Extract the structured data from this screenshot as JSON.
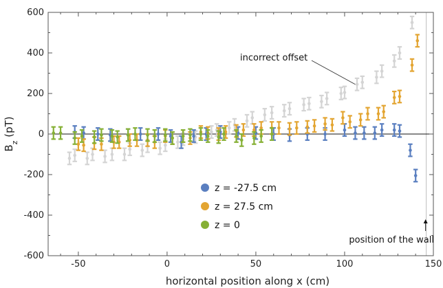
{
  "chart_data": {
    "type": "scatter",
    "title": "",
    "xlabel": "horizontal position along x (cm)",
    "ylabel": "B",
    "ylabel_sub": "z",
    "ylabel_unit": " (pT)",
    "xlim": [
      -67,
      150
    ],
    "ylim": [
      -600,
      600
    ],
    "x_ticks": [
      -50,
      0,
      50,
      100,
      150
    ],
    "y_ticks": [
      -600,
      -400,
      -200,
      0,
      200,
      400,
      600
    ],
    "x_tick_labels": [
      "-50",
      "0",
      "50",
      "100",
      "150"
    ],
    "y_tick_labels": [
      "-600",
      "-400",
      "-200",
      "0",
      "200",
      "400",
      "600"
    ],
    "grid": false,
    "wall_x": 146,
    "legend_position": "bottom-center",
    "annotations": {
      "incorrect_offset": "incorrect offset",
      "wall": "position of the wall"
    },
    "series": [
      {
        "name": "incorrect offset (gray)",
        "color": "#d4d4d4",
        "in_legend": false,
        "points": [
          {
            "x": -55,
            "y": -120,
            "err": 30
          },
          {
            "x": -52,
            "y": -105,
            "err": 30
          },
          {
            "x": -45,
            "y": -120,
            "err": 30
          },
          {
            "x": -42,
            "y": -100,
            "err": 30
          },
          {
            "x": -35,
            "y": -110,
            "err": 30
          },
          {
            "x": -31,
            "y": -100,
            "err": 30
          },
          {
            "x": -24,
            "y": -100,
            "err": 30
          },
          {
            "x": -21,
            "y": -75,
            "err": 30
          },
          {
            "x": -14,
            "y": -80,
            "err": 30
          },
          {
            "x": -11,
            "y": -60,
            "err": 30
          },
          {
            "x": -4,
            "y": -70,
            "err": 30
          },
          {
            "x": -1,
            "y": -55,
            "err": 30
          },
          {
            "x": 6,
            "y": -40,
            "err": 30
          },
          {
            "x": 9,
            "y": -25,
            "err": 30
          },
          {
            "x": 16,
            "y": -15,
            "err": 30
          },
          {
            "x": 19,
            "y": 0,
            "err": 30
          },
          {
            "x": 25,
            "y": 10,
            "err": 30
          },
          {
            "x": 28,
            "y": 20,
            "err": 30
          },
          {
            "x": 35,
            "y": 30,
            "err": 30
          },
          {
            "x": 38,
            "y": 45,
            "err": 30
          },
          {
            "x": 45,
            "y": 65,
            "err": 30
          },
          {
            "x": 48,
            "y": 80,
            "err": 30
          },
          {
            "x": 55,
            "y": 95,
            "err": 30
          },
          {
            "x": 59,
            "y": 105,
            "err": 30
          },
          {
            "x": 66,
            "y": 115,
            "err": 30
          },
          {
            "x": 69,
            "y": 125,
            "err": 30
          },
          {
            "x": 77,
            "y": 145,
            "err": 30
          },
          {
            "x": 80,
            "y": 150,
            "err": 30
          },
          {
            "x": 87,
            "y": 160,
            "err": 30
          },
          {
            "x": 90,
            "y": 175,
            "err": 30
          },
          {
            "x": 98,
            "y": 200,
            "err": 30
          },
          {
            "x": 100,
            "y": 205,
            "err": 30
          },
          {
            "x": 107,
            "y": 245,
            "err": 30
          },
          {
            "x": 110,
            "y": 255,
            "err": 30
          },
          {
            "x": 118,
            "y": 280,
            "err": 30
          },
          {
            "x": 121,
            "y": 310,
            "err": 30
          },
          {
            "x": 128,
            "y": 360,
            "err": 30
          },
          {
            "x": 131,
            "y": 400,
            "err": 30
          },
          {
            "x": 138,
            "y": 550,
            "err": 30
          }
        ]
      },
      {
        "name": "z = -27.5 cm",
        "color": "#5a7fc0",
        "in_legend": true,
        "points": [
          {
            "x": -52,
            "y": 10,
            "err": 30
          },
          {
            "x": -47,
            "y": 5,
            "err": 30
          },
          {
            "x": -39,
            "y": 0,
            "err": 30
          },
          {
            "x": -32,
            "y": -5,
            "err": 30
          },
          {
            "x": -22,
            "y": -5,
            "err": 30
          },
          {
            "x": -15,
            "y": 0,
            "err": 30
          },
          {
            "x": -5,
            "y": 0,
            "err": 30
          },
          {
            "x": 2,
            "y": -10,
            "err": 30
          },
          {
            "x": 8,
            "y": -40,
            "err": 30
          },
          {
            "x": 15,
            "y": -10,
            "err": 30
          },
          {
            "x": 22,
            "y": 0,
            "err": 30
          },
          {
            "x": 30,
            "y": 10,
            "err": 30
          },
          {
            "x": 40,
            "y": 5,
            "err": 30
          },
          {
            "x": 50,
            "y": 5,
            "err": 30
          },
          {
            "x": 60,
            "y": 0,
            "err": 30
          },
          {
            "x": 69,
            "y": -5,
            "err": 30
          },
          {
            "x": 79,
            "y": 0,
            "err": 30
          },
          {
            "x": 89,
            "y": 0,
            "err": 30
          },
          {
            "x": 100,
            "y": 20,
            "err": 30
          },
          {
            "x": 106,
            "y": 5,
            "err": 30
          },
          {
            "x": 111,
            "y": 5,
            "err": 30
          },
          {
            "x": 117,
            "y": 5,
            "err": 30
          },
          {
            "x": 121,
            "y": 20,
            "err": 30
          },
          {
            "x": 128,
            "y": 20,
            "err": 30
          },
          {
            "x": 131,
            "y": 15,
            "err": 30
          },
          {
            "x": 137,
            "y": -80,
            "err": 30
          },
          {
            "x": 140,
            "y": -205,
            "err": 30
          }
        ]
      },
      {
        "name": "z = 27.5 cm",
        "color": "#e3a532",
        "in_legend": true,
        "points": [
          {
            "x": -50,
            "y": -50,
            "err": 30
          },
          {
            "x": -47,
            "y": -55,
            "err": 30
          },
          {
            "x": -41,
            "y": -45,
            "err": 30
          },
          {
            "x": -37,
            "y": -50,
            "err": 30
          },
          {
            "x": -30,
            "y": -40,
            "err": 30
          },
          {
            "x": -27,
            "y": -40,
            "err": 30
          },
          {
            "x": -21,
            "y": -30,
            "err": 30
          },
          {
            "x": -17,
            "y": -30,
            "err": 30
          },
          {
            "x": -11,
            "y": -30,
            "err": 30
          },
          {
            "x": -7,
            "y": -40,
            "err": 30
          },
          {
            "x": -1,
            "y": -10,
            "err": 30
          },
          {
            "x": 3,
            "y": -20,
            "err": 30
          },
          {
            "x": 9,
            "y": -10,
            "err": 30
          },
          {
            "x": 13,
            "y": -20,
            "err": 30
          },
          {
            "x": 19,
            "y": 10,
            "err": 30
          },
          {
            "x": 23,
            "y": 5,
            "err": 30
          },
          {
            "x": 29,
            "y": 0,
            "err": 30
          },
          {
            "x": 33,
            "y": 10,
            "err": 30
          },
          {
            "x": 39,
            "y": 15,
            "err": 30
          },
          {
            "x": 43,
            "y": 20,
            "err": 30
          },
          {
            "x": 49,
            "y": 20,
            "err": 30
          },
          {
            "x": 53,
            "y": 30,
            "err": 30
          },
          {
            "x": 59,
            "y": 30,
            "err": 30
          },
          {
            "x": 63,
            "y": 30,
            "err": 30
          },
          {
            "x": 69,
            "y": 25,
            "err": 30
          },
          {
            "x": 73,
            "y": 30,
            "err": 30
          },
          {
            "x": 79,
            "y": 35,
            "err": 30
          },
          {
            "x": 83,
            "y": 40,
            "err": 30
          },
          {
            "x": 89,
            "y": 50,
            "err": 30
          },
          {
            "x": 93,
            "y": 45,
            "err": 30
          },
          {
            "x": 99,
            "y": 80,
            "err": 30
          },
          {
            "x": 103,
            "y": 60,
            "err": 30
          },
          {
            "x": 109,
            "y": 70,
            "err": 30
          },
          {
            "x": 113,
            "y": 100,
            "err": 30
          },
          {
            "x": 119,
            "y": 100,
            "err": 30
          },
          {
            "x": 122,
            "y": 110,
            "err": 30
          },
          {
            "x": 128,
            "y": 180,
            "err": 30
          },
          {
            "x": 131,
            "y": 185,
            "err": 30
          },
          {
            "x": 138,
            "y": 340,
            "err": 30
          },
          {
            "x": 141,
            "y": 460,
            "err": 30
          }
        ]
      },
      {
        "name": "z = 0",
        "color": "#86b035",
        "in_legend": true,
        "points": [
          {
            "x": -64,
            "y": 5,
            "err": 30
          },
          {
            "x": -60,
            "y": 5,
            "err": 30
          },
          {
            "x": -52,
            "y": -20,
            "err": 30
          },
          {
            "x": -48,
            "y": -10,
            "err": 30
          },
          {
            "x": -41,
            "y": -15,
            "err": 30
          },
          {
            "x": -37,
            "y": -5,
            "err": 30
          },
          {
            "x": -31,
            "y": -10,
            "err": 30
          },
          {
            "x": -28,
            "y": -15,
            "err": 30
          },
          {
            "x": -22,
            "y": -5,
            "err": 30
          },
          {
            "x": -18,
            "y": 0,
            "err": 30
          },
          {
            "x": -11,
            "y": -5,
            "err": 30
          },
          {
            "x": -7,
            "y": -10,
            "err": 30
          },
          {
            "x": -1,
            "y": -5,
            "err": 30
          },
          {
            "x": 3,
            "y": -20,
            "err": 30
          },
          {
            "x": 9,
            "y": -10,
            "err": 30
          },
          {
            "x": 13,
            "y": -5,
            "err": 30
          },
          {
            "x": 19,
            "y": 0,
            "err": 30
          },
          {
            "x": 23,
            "y": -10,
            "err": 30
          },
          {
            "x": 29,
            "y": -15,
            "err": 30
          },
          {
            "x": 32,
            "y": 0,
            "err": 30
          },
          {
            "x": 39,
            "y": -10,
            "err": 30
          },
          {
            "x": 42,
            "y": -30,
            "err": 30
          },
          {
            "x": 49,
            "y": -20,
            "err": 30
          },
          {
            "x": 53,
            "y": -10,
            "err": 30
          },
          {
            "x": 59,
            "y": 0,
            "err": 30
          }
        ]
      }
    ]
  }
}
